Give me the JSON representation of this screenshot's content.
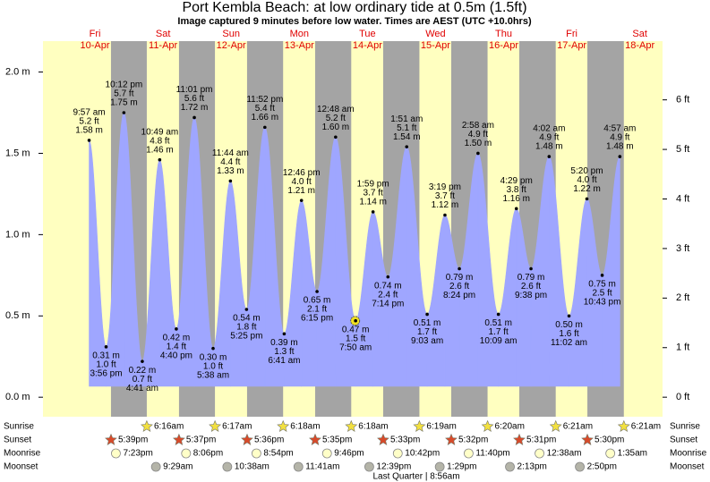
{
  "chart_data": {
    "type": "tide",
    "title": "Port Kembla Beach: at low  ordinary tide at 0.5m (1.5ft)",
    "subtitle": "Image captured 9 minutes before low water. Times are AEST (UTC +10.0hrs)",
    "day_color": "#ffffc0",
    "night_color": "#a4a4a4",
    "days": [
      {
        "name": "Fri",
        "date": "10-Apr"
      },
      {
        "name": "Sat",
        "date": "11-Apr"
      },
      {
        "name": "Sun",
        "date": "12-Apr"
      },
      {
        "name": "Mon",
        "date": "13-Apr"
      },
      {
        "name": "Tue",
        "date": "14-Apr"
      },
      {
        "name": "Wed",
        "date": "15-Apr"
      },
      {
        "name": "Thu",
        "date": "16-Apr"
      },
      {
        "name": "Fri",
        "date": "17-Apr"
      },
      {
        "name": "Sat",
        "date": "18-Apr"
      }
    ],
    "ylim": [
      -0.12,
      2.19
    ],
    "yticks": [
      {
        "value": 0,
        "label": "0.0 m"
      },
      {
        "value": 0.5,
        "label": "0.5 m"
      },
      {
        "value": 1,
        "label": "1.0 m"
      },
      {
        "value": 1.5,
        "label": "1.5 m"
      },
      {
        "value": 2,
        "label": "2.0 m"
      }
    ],
    "y2lim": [
      -0.394,
      7.185
    ],
    "y2ticks": [
      {
        "value": 0,
        "label": "0 ft"
      },
      {
        "value": 1,
        "label": "1 ft"
      },
      {
        "value": 2,
        "label": "2 ft"
      },
      {
        "value": 3,
        "label": "3 ft"
      },
      {
        "value": 4,
        "label": "4 ft"
      },
      {
        "value": 5,
        "label": "5 ft"
      },
      {
        "value": 6,
        "label": "6 ft"
      }
    ],
    "series": [
      {
        "color": "#9fa6ff",
        "x": [
          "9:57 am",
          "3:56 pm",
          "10:12 pm",
          "4:41 am",
          "10:49 am",
          "4:40 pm",
          "11:01 pm",
          "5:38 am",
          "11:44 am",
          "5:25 pm",
          "11:52 pm",
          "6:41 am",
          "12:46 pm",
          "6:15 pm",
          "12:48 am",
          "7:50 am",
          "1:59 pm",
          "7:14 pm",
          "1:51 am",
          "9:03 am",
          "3:19 pm",
          "8:24 pm",
          "2:58 am",
          "10:09 am",
          "4:29 pm",
          "9:38 pm",
          "4:02 am",
          "11:02 am",
          "5:20 pm",
          "10:43 pm",
          "4:57 am"
        ],
        "values": [
          1.58,
          0.31,
          1.75,
          0.22,
          1.46,
          0.42,
          1.72,
          0.3,
          1.33,
          0.54,
          1.66,
          0.39,
          1.21,
          0.65,
          1.6,
          0.47,
          1.14,
          0.74,
          1.54,
          0.51,
          1.12,
          0.79,
          1.5,
          0.51,
          1.16,
          0.79,
          1.48,
          0.5,
          1.22,
          0.75,
          1.48
        ],
        "value_labels": [
          "1.58 m",
          "0.31 m",
          "1.75 m",
          "0.22 m",
          "1.46 m",
          "0.42 m",
          "1.72 m",
          "0.30 m",
          "1.33 m",
          "0.54 m",
          "1.66 m",
          "0.39 m",
          "1.21 m",
          "0.65 m",
          "1.60 m",
          "0.47 m",
          "1.14 m",
          "0.74 m",
          "1.54 m",
          "0.51 m",
          "1.12 m",
          "0.79 m",
          "1.50 m",
          "0.51 m",
          "1.16 m",
          "0.79 m",
          "1.48 m",
          "0.50 m",
          "1.22 m",
          "0.75 m",
          "1.48 m"
        ],
        "ft_labels": [
          "5.2 ft",
          "1.0 ft",
          "5.7 ft",
          "0.7 ft",
          "4.8 ft",
          "1.4 ft",
          "5.6 ft",
          "1.0 ft",
          "4.4 ft",
          "1.8 ft",
          "5.4 ft",
          "1.3 ft",
          "4.0 ft",
          "2.1 ft",
          "5.2 ft",
          "1.5 ft",
          "3.7 ft",
          "2.4 ft",
          "5.1 ft",
          "1.7 ft",
          "3.7 ft",
          "2.6 ft",
          "4.9 ft",
          "1.7 ft",
          "3.8 ft",
          "2.6 ft",
          "4.9 ft",
          "1.6 ft",
          "4.0 ft",
          "2.5 ft",
          "4.9 ft"
        ]
      }
    ],
    "astro": [
      {
        "label": "Sunrise",
        "color": "#f2e040",
        "times": [
          "6:16am",
          "6:17am",
          "6:18am",
          "6:18am",
          "6:19am",
          "6:20am",
          "6:21am",
          "6:21am"
        ]
      },
      {
        "label": "Sunset",
        "color": "#d84a2a",
        "times": [
          "5:39pm",
          "5:37pm",
          "5:36pm",
          "5:35pm",
          "5:33pm",
          "5:32pm",
          "5:31pm",
          "5:30pm"
        ]
      },
      {
        "label": "Moonrise",
        "color": "#ffffc8",
        "times": [
          "7:23pm",
          "8:06pm",
          "8:54pm",
          "9:46pm",
          "10:42pm",
          "11:40pm",
          "12:38am",
          "1:35am"
        ]
      },
      {
        "label": "Moonset",
        "color": "#b4b4a8",
        "times": [
          "9:29am",
          "10:38am",
          "11:41am",
          "12:39pm",
          "1:29pm",
          "2:13pm",
          "2:50pm"
        ]
      }
    ],
    "moon_phase": "Last Quarter | 8:56am"
  }
}
